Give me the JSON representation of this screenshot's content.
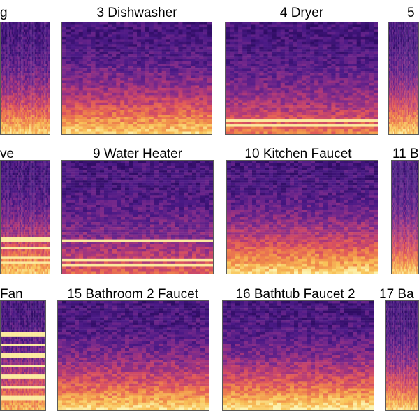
{
  "chart_data": {
    "type": "heatmap",
    "description_kind": "grid of audio spectrogram panels (magma-like colormap)",
    "colormap": [
      "#2a0a5e",
      "#4b1a86",
      "#7a2a8c",
      "#b23a78",
      "#e0565a",
      "#f08a4a",
      "#f9c55a",
      "#fcf3b0"
    ],
    "panels": [
      {
        "title": "g",
        "row": 0,
        "col": 0,
        "brightness": 0.62,
        "tones": []
      },
      {
        "title": "3 Dishwasher",
        "row": 0,
        "col": 1,
        "brightness": 0.62,
        "tones": []
      },
      {
        "title": "4 Dryer",
        "row": 0,
        "col": 2,
        "brightness": 0.45,
        "tones": [
          0.88,
          0.94
        ]
      },
      {
        "title": "5",
        "row": 0,
        "col": 3,
        "brightness": 0.62,
        "tones": []
      },
      {
        "title": "ve",
        "row": 1,
        "col": 0,
        "brightness": 0.6,
        "tones": [
          0.7,
          0.78,
          0.86,
          0.92
        ]
      },
      {
        "title": "9 Water Heater",
        "row": 1,
        "col": 1,
        "brightness": 0.38,
        "tones": [
          0.72,
          0.88,
          0.93
        ]
      },
      {
        "title": "10 Kitchen Faucet",
        "row": 1,
        "col": 2,
        "brightness": 0.64,
        "tones": []
      },
      {
        "title": "11 B",
        "row": 1,
        "col": 3,
        "brightness": 0.6,
        "tones": []
      },
      {
        "title": "Fan",
        "row": 2,
        "col": 0,
        "brightness": 0.55,
        "tones": [
          0.3,
          0.4,
          0.5,
          0.6,
          0.7,
          0.8,
          0.9
        ]
      },
      {
        "title": "15 Bathroom 2 Faucet",
        "row": 2,
        "col": 1,
        "brightness": 0.65,
        "tones": []
      },
      {
        "title": "16 Bathtub Faucet 2",
        "row": 2,
        "col": 2,
        "brightness": 0.68,
        "tones": []
      },
      {
        "title": "17 Ba",
        "row": 2,
        "col": 3,
        "brightness": 0.62,
        "tones": []
      }
    ]
  }
}
